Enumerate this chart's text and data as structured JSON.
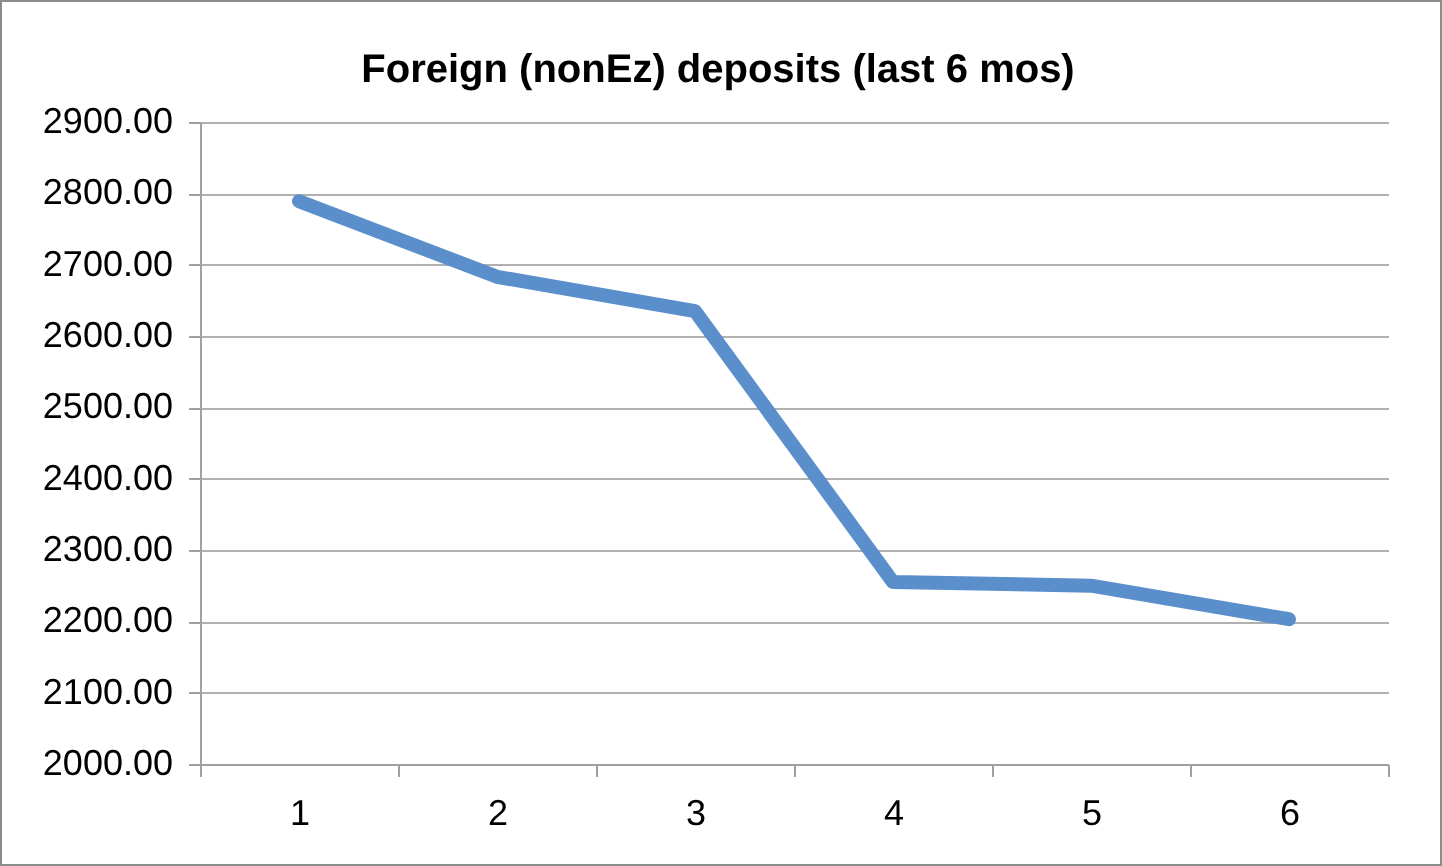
{
  "chart_data": {
    "type": "line",
    "title": "Foreign (nonEz) deposits (last 6 mos)",
    "categories": [
      "1",
      "2",
      "3",
      "4",
      "5",
      "6"
    ],
    "series": [
      {
        "color": "#5a8fcb",
        "values": [
          2789,
          2683,
          2635,
          2255,
          2250,
          2203
        ]
      }
    ],
    "ylim": [
      2000,
      2900
    ],
    "yticks": [
      {
        "value": 2000,
        "label": "2000.00"
      },
      {
        "value": 2100,
        "label": "2100.00"
      },
      {
        "value": 2200,
        "label": "2200.00"
      },
      {
        "value": 2300,
        "label": "2300.00"
      },
      {
        "value": 2400,
        "label": "2400.00"
      },
      {
        "value": 2500,
        "label": "2500.00"
      },
      {
        "value": 2600,
        "label": "2600.00"
      },
      {
        "value": 2700,
        "label": "2700.00"
      },
      {
        "value": 2800,
        "label": "2800.00"
      },
      {
        "value": 2900,
        "label": "2900.00"
      }
    ],
    "grid": "y"
  }
}
